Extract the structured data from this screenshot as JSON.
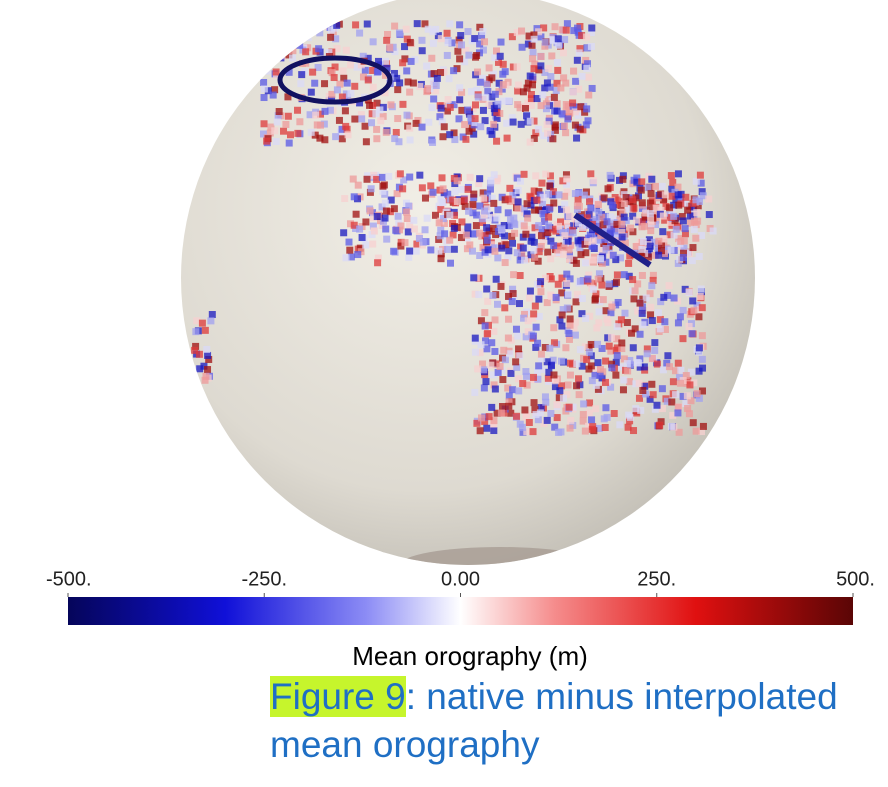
{
  "colorbar": {
    "label": "Mean orography (m)",
    "ticks": [
      {
        "value": -500,
        "label": "-500."
      },
      {
        "value": -250,
        "label": "-250."
      },
      {
        "value": 0,
        "label": "0.00"
      },
      {
        "value": 250,
        "label": "250."
      },
      {
        "value": 500,
        "label": "500."
      }
    ]
  },
  "caption": {
    "label": "Figure 9",
    "lines": [
      ": native minus interpolated",
      "mean orography"
    ]
  }
}
